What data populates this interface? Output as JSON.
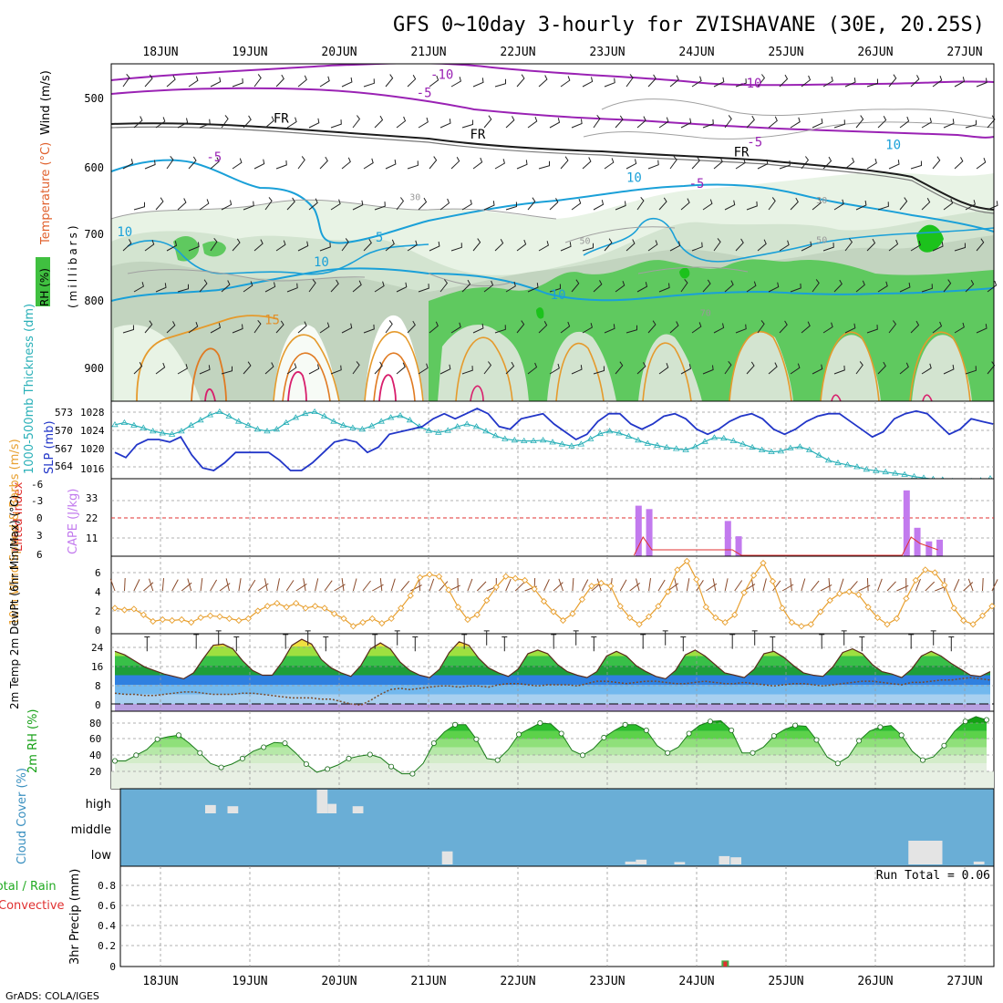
{
  "title": "GFS 0~10day 3-hourly for ZVISHAVANE (30E, 20.25S)",
  "footer": "GrADS: COLA/IGES",
  "dates": [
    "18JUN",
    "19JUN",
    "20JUN",
    "21JUN",
    "22JUN",
    "23JUN",
    "24JUN",
    "25JUN",
    "26JUN",
    "27JUN"
  ],
  "colors": {
    "rh_green": "#3cbf3c",
    "temp_purple": "#9a22b4",
    "temp_cyan": "#1aa0d8",
    "freezing": "#222222",
    "cape": "#c27aee",
    "slp": "#2236c8",
    "thick": "#2ab0b8",
    "wind10": "#e8a030",
    "cloud": "#6aaed6",
    "precip_total": "#44aa44",
    "precip_conv": "#e03030"
  },
  "chart_data": [
    {
      "type": "contour",
      "name": "upper-air cross-section",
      "ylabel_parts": [
        "Wind (m/s)",
        "Temperature (°C)",
        "RH (%)"
      ],
      "ylabel_right": "(millibars)",
      "yticks": [
        "500",
        "600",
        "700",
        "800",
        "900"
      ],
      "contour_labels": [
        {
          "text": "-10",
          "day": 3.15,
          "p": 477
        },
        {
          "text": "-10",
          "day": 6.6,
          "p": 490
        },
        {
          "text": "-5",
          "day": 2.95,
          "p": 504
        },
        {
          "text": "-5",
          "day": 6.65,
          "p": 576
        },
        {
          "text": "FR",
          "day": 1.35,
          "p": 541
        },
        {
          "text": "FR",
          "day": 3.55,
          "p": 565
        },
        {
          "text": "FR",
          "day": 6.5,
          "p": 591
        },
        {
          "text": "-5",
          "day": 0.6,
          "p": 598
        },
        {
          "text": "-5",
          "day": 6.0,
          "p": 637
        },
        {
          "text": "5",
          "day": 2.45,
          "p": 716
        },
        {
          "text": "10",
          "day": 1.8,
          "p": 752
        },
        {
          "text": "10",
          "day": 4.45,
          "p": 800
        },
        {
          "text": "15",
          "day": 1.25,
          "p": 837
        },
        {
          "text": "10",
          "day": 5.3,
          "p": 628
        },
        {
          "text": "10",
          "day": 8.2,
          "p": 580
        },
        {
          "text": "30",
          "day": 2.85,
          "p": 655
        },
        {
          "text": "30",
          "day": 7.4,
          "p": 660
        },
        {
          "text": "50",
          "day": 4.75,
          "p": 719
        },
        {
          "text": "50",
          "day": 7.4,
          "p": 718
        },
        {
          "text": "10",
          "day": -0.4,
          "p": 708
        },
        {
          "text": "70",
          "day": 6.1,
          "p": 825
        }
      ]
    },
    {
      "type": "line",
      "name": "SLP and thickness",
      "ylabel_left": "1000-500mb Thickness (dm)",
      "ylabel_right": "SLP (mb)",
      "left_ticks": [
        "573",
        "570",
        "567",
        "564"
      ],
      "right_ticks": [
        "1028",
        "1024",
        "1020",
        "1016"
      ],
      "series": [
        {
          "name": "SLP (mb)",
          "values": [
            1019.5,
            1018.5,
            1021.0,
            1022.0,
            1022.0,
            1021.5,
            1022.5,
            1019.0,
            1016.5,
            1016.0,
            1017.5,
            1019.5,
            1019.5,
            1019.5,
            1019.5,
            1018.0,
            1016.0,
            1016.0,
            1017.5,
            1019.5,
            1021.5,
            1022.0,
            1021.5,
            1019.5,
            1020.5,
            1023.0,
            1023.5,
            1024.0,
            1024.5,
            1026.0,
            1027.0,
            1026.0,
            1027.0,
            1028.0,
            1027.0,
            1024.5,
            1024.0,
            1026.0,
            1026.5,
            1027.0,
            1025.0,
            1023.5,
            1022.0,
            1023.0,
            1025.5,
            1027.0,
            1027.0,
            1025.0,
            1024.0,
            1025.0,
            1026.5,
            1027.0,
            1026.0,
            1024.0,
            1023.0,
            1024.0,
            1025.5,
            1026.5,
            1027.0,
            1026.0,
            1024.0,
            1023.0,
            1024.0,
            1025.5,
            1026.5,
            1027.0,
            1027.0,
            1025.5,
            1024.0,
            1022.5,
            1023.5,
            1026.0,
            1027.0,
            1027.5,
            1027.0,
            1025.0,
            1023.0,
            1024.0,
            1026.0,
            1025.5,
            1025.0
          ]
        },
        {
          "name": "Thickness (dm)",
          "values": [
            570.5,
            570.8,
            570.4,
            570.0,
            569.5,
            569.2,
            569.0,
            569.5,
            570.4,
            571.2,
            572.0,
            572.5,
            571.8,
            571.0,
            570.4,
            569.8,
            569.5,
            569.8,
            570.8,
            571.6,
            572.2,
            572.5,
            571.8,
            571.0,
            570.4,
            570.0,
            569.8,
            570.3,
            571.0,
            571.6,
            571.9,
            571.2,
            570.2,
            569.6,
            569.3,
            569.6,
            570.2,
            570.6,
            570.2,
            569.5,
            568.8,
            568.3,
            568.1,
            568.0,
            568.0,
            568.1,
            567.8,
            567.5,
            567.2,
            567.5,
            568.3,
            569.1,
            569.5,
            569.2,
            568.7,
            568.1,
            567.6,
            567.3,
            567.0,
            566.8,
            566.6,
            567.1,
            567.9,
            568.5,
            568.4,
            568.0,
            567.5,
            567.0,
            566.6,
            566.3,
            566.4,
            566.9,
            567.1,
            566.6,
            565.8,
            565.0,
            564.6,
            564.3,
            564.0,
            563.6,
            563.4,
            563.2,
            563.0,
            562.8,
            562.5,
            562.3,
            562.1,
            562.0,
            561.8,
            561.7,
            561.8,
            561.9,
            562.2
          ]
        }
      ]
    },
    {
      "type": "bar",
      "name": "CAPE and Lifted Index",
      "ylabel_left": "Lifted Index",
      "ylabel_right": "CAPE (J/kg)",
      "left_ticks": [
        "-6",
        "-3",
        "0",
        "3",
        "6"
      ],
      "right_ticks": [
        "33",
        "22",
        "11"
      ],
      "series": [
        {
          "name": "CAPE (J/kg)",
          "values": [
            {
              "day": 5.35,
              "v": 30
            },
            {
              "day": 5.47,
              "v": 28
            },
            {
              "day": 6.35,
              "v": 21
            },
            {
              "day": 6.47,
              "v": 12
            },
            {
              "day": 8.35,
              "v": 39
            },
            {
              "day": 8.47,
              "v": 17
            },
            {
              "day": 8.6,
              "v": 9
            },
            {
              "day": 8.72,
              "v": 10
            }
          ]
        },
        {
          "name": "Lifted Index",
          "values": [
            {
              "day": 5.3,
              "v": 6
            },
            {
              "day": 5.4,
              "v": 3
            },
            {
              "day": 5.5,
              "v": 5
            },
            {
              "day": 6.4,
              "v": 5
            },
            {
              "day": 6.5,
              "v": 6
            },
            {
              "day": 7.5,
              "v": 6
            },
            {
              "day": 8.3,
              "v": 6
            },
            {
              "day": 8.4,
              "v": 3
            },
            {
              "day": 8.5,
              "v": 4
            },
            {
              "day": 8.7,
              "v": 5
            }
          ]
        }
      ],
      "zero_line": 0
    },
    {
      "type": "line",
      "name": "10m wind speed",
      "ylabel": "10m Wind Speed & Barbs (m/s)",
      "yticks": [
        "6",
        "4",
        "2",
        "0"
      ],
      "series": [
        {
          "name": "Wind speed (m/s)",
          "values": [
            2.3,
            2.1,
            2.2,
            1.6,
            0.9,
            1.1,
            1.0,
            1.1,
            0.8,
            1.3,
            1.5,
            1.4,
            1.2,
            1.0,
            1.2,
            2.0,
            2.5,
            2.8,
            2.4,
            2.8,
            2.3,
            2.5,
            2.3,
            1.7,
            1.2,
            0.4,
            0.8,
            1.2,
            0.7,
            1.2,
            2.3,
            3.6,
            5.5,
            5.8,
            5.6,
            4.2,
            2.4,
            1.1,
            1.6,
            3.1,
            4.5,
            5.6,
            5.4,
            5.2,
            4.3,
            3.0,
            1.9,
            1.0,
            1.7,
            3.2,
            4.6,
            4.9,
            4.6,
            2.5,
            1.3,
            0.6,
            1.4,
            2.5,
            4.0,
            6.3,
            7.2,
            5.3,
            2.4,
            1.3,
            0.8,
            1.6,
            3.9,
            5.7,
            7.0,
            5.1,
            2.3,
            0.8,
            0.4,
            0.6,
            1.9,
            3.1,
            3.8,
            4.0,
            3.7,
            2.4,
            1.3,
            0.6,
            1.2,
            3.3,
            5.2,
            6.3,
            6.0,
            4.7,
            2.3,
            1.0,
            0.6,
            1.5,
            2.5
          ]
        }
      ]
    },
    {
      "type": "area",
      "name": "2m temperature and dew point",
      "ylabel": "2m Temp 2m DewPt (6hr Min/Max) (°C)",
      "yticks": [
        "24",
        "16",
        "8",
        "0"
      ],
      "series": [
        {
          "name": "2m Temp (°C)",
          "values": [
            22.0,
            20.5,
            18.0,
            15.5,
            14.0,
            12.5,
            11.5,
            10.5,
            13.0,
            19.0,
            24.5,
            25.0,
            23.0,
            18.0,
            14.0,
            12.0,
            12.0,
            17.5,
            24.5,
            27.0,
            25.0,
            18.5,
            15.0,
            13.0,
            11.5,
            16.0,
            23.0,
            25.5,
            23.0,
            17.5,
            14.0,
            12.0,
            11.0,
            14.5,
            21.5,
            26.0,
            24.5,
            19.0,
            15.0,
            13.0,
            11.5,
            14.5,
            21.0,
            22.5,
            21.0,
            16.5,
            13.5,
            12.0,
            11.0,
            13.5,
            20.0,
            22.0,
            20.0,
            16.0,
            13.5,
            11.5,
            10.5,
            14.0,
            20.5,
            22.5,
            20.0,
            16.5,
            13.0,
            12.0,
            11.0,
            14.5,
            21.0,
            22.0,
            19.5,
            16.0,
            13.0,
            12.0,
            11.5,
            15.5,
            21.5,
            23.0,
            21.0,
            16.5,
            13.5,
            12.5,
            11.0,
            14.5,
            20.0,
            22.0,
            20.0,
            17.0,
            14.5,
            12.0,
            11.5,
            13.5
          ]
        },
        {
          "name": "2m DewPt (°C)",
          "values": [
            4.5,
            4.0,
            4.0,
            3.5,
            3.5,
            4.0,
            4.5,
            5.0,
            5.0,
            4.5,
            4.0,
            4.0,
            4.0,
            4.5,
            4.5,
            4.0,
            3.5,
            3.0,
            2.5,
            2.5,
            2.5,
            2.0,
            2.0,
            1.0,
            0.0,
            -0.5,
            1.5,
            4.0,
            6.0,
            6.5,
            6.0,
            6.5,
            7.0,
            7.5,
            7.5,
            7.0,
            7.5,
            7.5,
            7.0,
            8.0,
            8.5,
            8.5,
            8.0,
            7.5,
            8.0,
            8.0,
            8.0,
            7.5,
            8.5,
            9.5,
            9.5,
            9.0,
            8.5,
            9.0,
            9.5,
            9.5,
            9.0,
            8.5,
            8.5,
            9.0,
            9.5,
            9.0,
            8.5,
            8.5,
            9.0,
            8.5,
            8.0,
            7.5,
            8.0,
            8.5,
            8.5,
            8.0,
            7.5,
            8.0,
            8.5,
            9.0,
            9.5,
            9.5,
            9.0,
            8.5,
            8.0,
            9.0,
            9.0,
            9.5,
            10.0,
            10.0,
            10.5,
            11.0,
            10.5,
            10.0
          ]
        }
      ]
    },
    {
      "type": "area",
      "name": "2m relative humidity",
      "ylabel": "2m RH (%)",
      "yticks": [
        "80",
        "60",
        "40",
        "20"
      ],
      "series": [
        {
          "name": "2m RH (%)",
          "values": [
            33.0,
            33.0,
            40.0,
            47.0,
            60.0,
            63.0,
            65.0,
            55.0,
            43.0,
            30.0,
            25.0,
            29.0,
            36.0,
            45.0,
            50.0,
            56.0,
            55.0,
            43.0,
            29.0,
            19.0,
            23.0,
            28.0,
            36.0,
            39.0,
            41.0,
            37.0,
            26.0,
            17.0,
            17.0,
            30.0,
            55.0,
            69.0,
            78.0,
            78.0,
            60.0,
            36.0,
            34.0,
            47.0,
            66.0,
            73.0,
            80.0,
            79.0,
            67.0,
            46.0,
            40.0,
            48.0,
            62.0,
            71.0,
            78.0,
            78.0,
            71.0,
            52.0,
            43.0,
            50.0,
            67.0,
            77.0,
            82.0,
            83.0,
            71.0,
            43.0,
            43.0,
            50.0,
            64.0,
            72.0,
            77.0,
            76.0,
            59.0,
            38.0,
            30.0,
            38.0,
            58.0,
            70.0,
            75.0,
            77.0,
            65.0,
            45.0,
            34.0,
            38.0,
            52.0,
            70.0,
            82.0,
            88.0,
            84.0
          ]
        }
      ]
    },
    {
      "type": "bar",
      "name": "cloud cover",
      "ylabel": "Cloud Cover (%)",
      "ytick_labels": [
        "high",
        "middle",
        "low"
      ],
      "values": [
        {
          "level": "high",
          "day": 0.5,
          "dur": 0.12,
          "pct": 35
        },
        {
          "level": "high",
          "day": 0.75,
          "dur": 0.12,
          "pct": 30
        },
        {
          "level": "high",
          "day": 1.75,
          "dur": 0.12,
          "pct": 100
        },
        {
          "level": "high",
          "day": 1.87,
          "dur": 0.1,
          "pct": 40
        },
        {
          "level": "high",
          "day": 2.15,
          "dur": 0.12,
          "pct": 30
        },
        {
          "level": "low",
          "day": 3.15,
          "dur": 0.12,
          "pct": 55
        },
        {
          "level": "low",
          "day": 5.2,
          "dur": 0.12,
          "pct": 12
        },
        {
          "level": "low",
          "day": 5.32,
          "dur": 0.12,
          "pct": 20
        },
        {
          "level": "low",
          "day": 5.75,
          "dur": 0.12,
          "pct": 10
        },
        {
          "level": "low",
          "day": 6.25,
          "dur": 0.12,
          "pct": 35
        },
        {
          "level": "low",
          "day": 6.38,
          "dur": 0.12,
          "pct": 30
        },
        {
          "level": "low",
          "day": 8.37,
          "dur": 0.38,
          "pct": 100
        },
        {
          "level": "low",
          "day": 9.1,
          "dur": 0.12,
          "pct": 12
        }
      ]
    },
    {
      "type": "bar",
      "name": "3hr precipitation",
      "ylabel": "3hr Precip (mm)",
      "legend_lines": [
        "Total / Rain",
        "Convective"
      ],
      "yticks": [
        "0.8",
        "0.6",
        "0.4",
        "0.2",
        "0"
      ],
      "run_total_label": "Run Total = 0.06",
      "values": [
        {
          "day": 6.32,
          "total": 0.06,
          "conv": 0.05
        }
      ]
    }
  ]
}
